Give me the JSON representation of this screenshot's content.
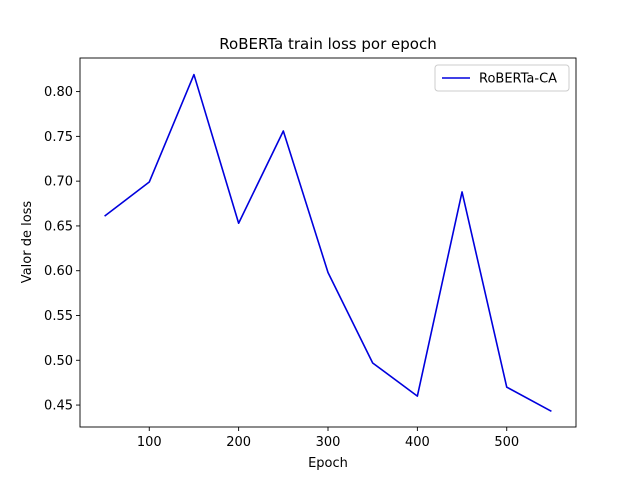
{
  "chart_data": {
    "type": "line",
    "title": "RoBERTa train loss por epoch",
    "xlabel": "Epoch",
    "ylabel": "Valor de loss",
    "xlim": [
      22.5,
      577.5
    ],
    "ylim": [
      0.4255,
      0.8375
    ],
    "xticks": [
      100,
      200,
      300,
      400,
      500
    ],
    "yticks": [
      0.45,
      0.5,
      0.55,
      0.6,
      0.65,
      0.7,
      0.75,
      0.8
    ],
    "grid": false,
    "legend_position": "top-right",
    "series": [
      {
        "name": "RoBERTa-CA",
        "color": "#0000dd",
        "x": [
          50,
          100,
          150,
          200,
          250,
          300,
          350,
          400,
          450,
          500,
          550
        ],
        "y": [
          0.661,
          0.699,
          0.819,
          0.653,
          0.756,
          0.598,
          0.497,
          0.46,
          0.688,
          0.47,
          0.443
        ]
      }
    ]
  }
}
